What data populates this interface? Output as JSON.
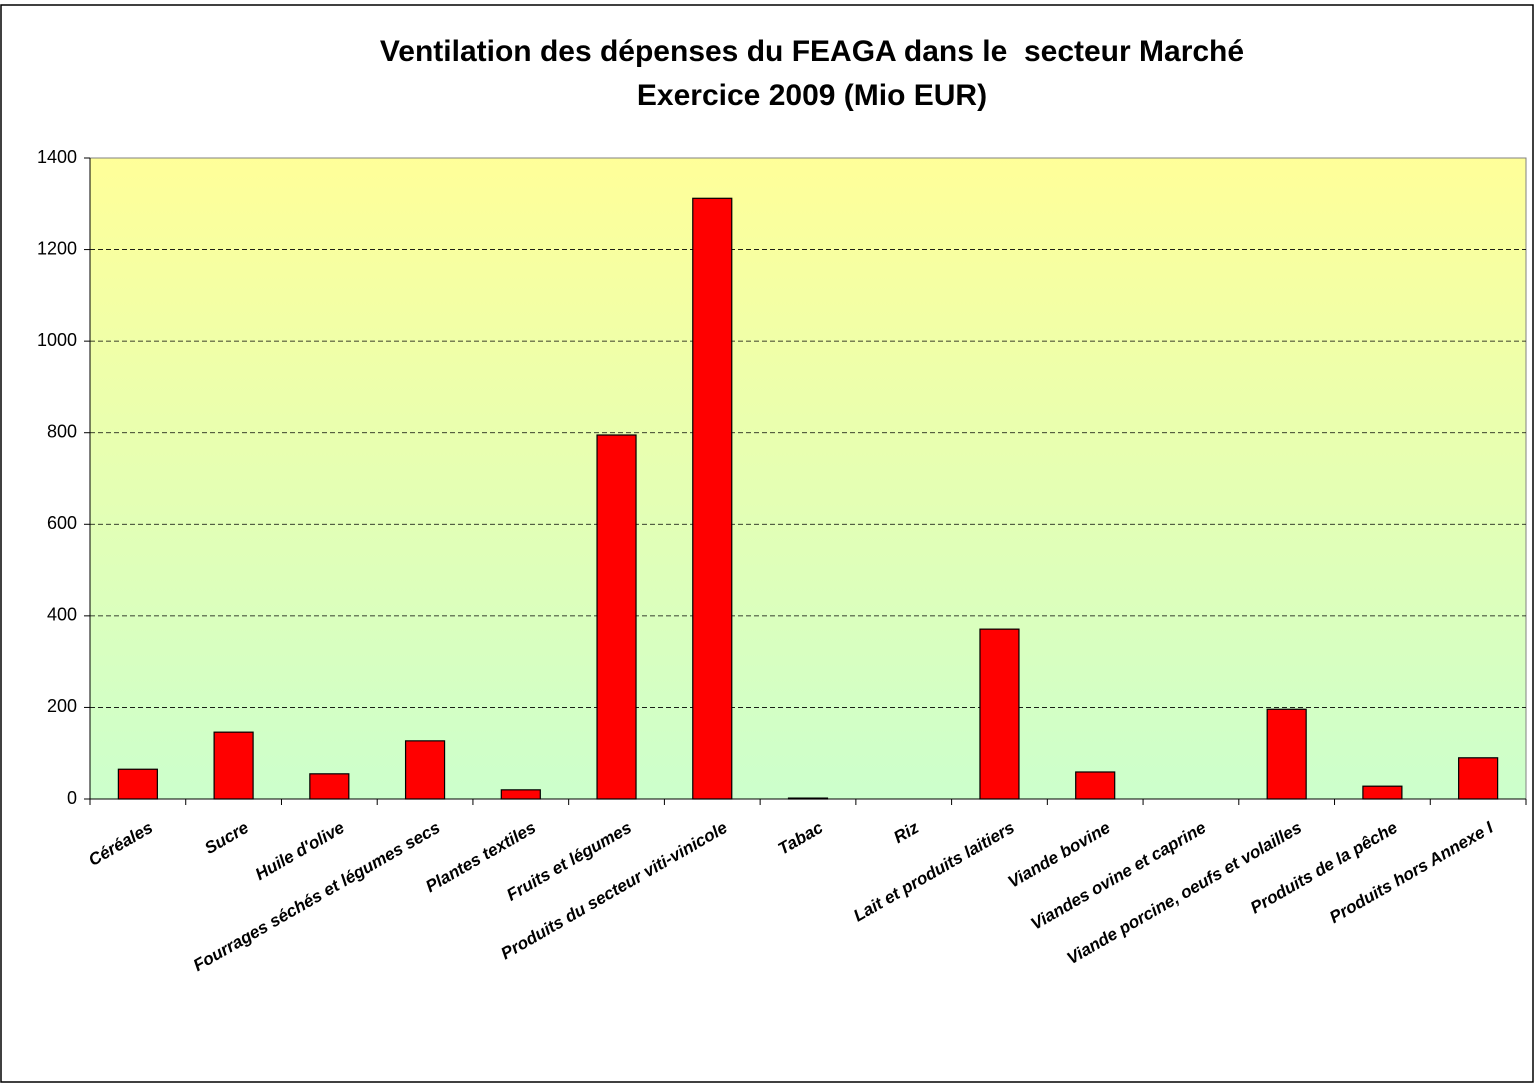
{
  "chart_data": {
    "type": "bar",
    "title": "Ventilation des dépenses du FEAGA dans le  secteur Marché",
    "subtitle": "Exercice 2009 (Mio EUR)",
    "categories": [
      "Céréales",
      "Sucre",
      "Huile d'olive",
      "Fourrages séchés et légumes secs",
      "Plantes textiles",
      "Fruits et légumes",
      "Produits du secteur viti-vinicole",
      "Tabac",
      "Riz",
      "Lait et produits laitiers",
      "Viande bovine",
      "Viandes ovine et caprine",
      "Viande porcine, oeufs et volailles",
      "Produits de la pêche",
      "Produits hors Annexe I"
    ],
    "values": [
      65,
      146,
      55,
      127,
      20,
      795,
      1312,
      2,
      0,
      371,
      59,
      0,
      196,
      28,
      90
    ],
    "color": "#ff0000",
    "ylim": [
      0,
      1400
    ],
    "yticks": [
      0,
      200,
      400,
      600,
      800,
      1000,
      1200,
      1400
    ],
    "grid": true
  }
}
